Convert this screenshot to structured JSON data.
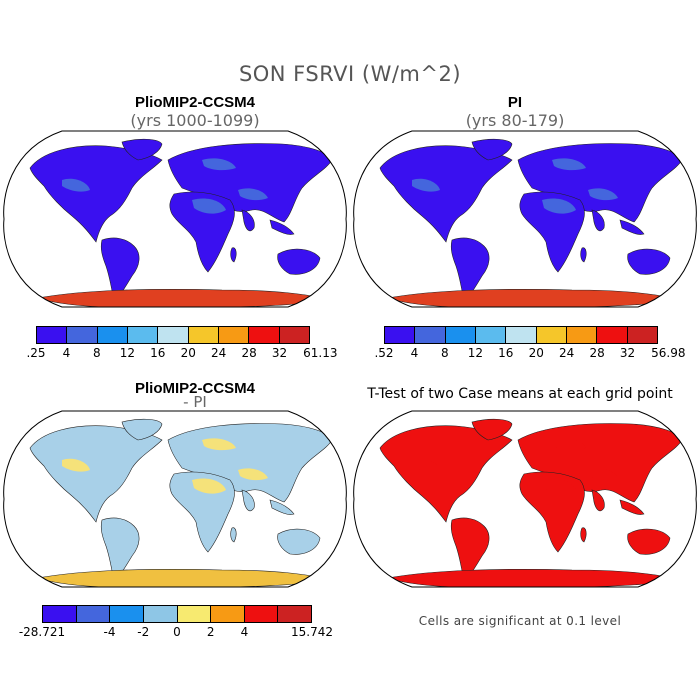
{
  "figure": {
    "title": "SON FSRVI (W/m^2)"
  },
  "panels": {
    "top_left": {
      "title": "PlioMIP2-CCSM4",
      "subtitle": "(yrs 1000-1099)"
    },
    "top_right": {
      "title": "PI",
      "subtitle": "(yrs 80-179)"
    },
    "bottom_left": {
      "title": "PlioMIP2-CCSM4",
      "subtitle": "- PI"
    },
    "bottom_right": {
      "title": "T-Test of two Case means at each grid point",
      "note": "Cells are significant at 0.1 level"
    }
  },
  "colorbars": {
    "top_left": {
      "labels": [
        ".25",
        "4",
        "8",
        "12",
        "16",
        "20",
        "24",
        "28",
        "32",
        "61.13"
      ],
      "colors": [
        "#3a10f0",
        "#4466dd",
        "#1a90ee",
        "#5bbbee",
        "#bfe3f0",
        "#f5c62a",
        "#f79a14",
        "#ee1010",
        "#cc2222"
      ]
    },
    "top_right": {
      "labels": [
        ".52",
        "4",
        "8",
        "12",
        "16",
        "20",
        "24",
        "28",
        "32",
        "56.98"
      ],
      "colors": [
        "#3a10f0",
        "#4466dd",
        "#1a90ee",
        "#5bbbee",
        "#bfe3f0",
        "#f5c62a",
        "#f79a14",
        "#ee1010",
        "#cc2222"
      ]
    },
    "bottom_left": {
      "labels": [
        "-28.721",
        "-4",
        "-2",
        "0",
        "2",
        "4",
        "15.742"
      ],
      "colors": [
        "#3a10f0",
        "#4466dd",
        "#1a90ee",
        "#8ec6e6",
        "#f7ea70",
        "#f79a14",
        "#ee1010",
        "#cc2222"
      ]
    }
  },
  "map_colors": {
    "top_left": {
      "land": "#3a10f0",
      "secondary": "#4466dd",
      "antarctica": "#e04020"
    },
    "top_right": {
      "land": "#3a10f0",
      "secondary": "#4466dd",
      "antarctica": "#e04020"
    },
    "bottom_left": {
      "land": "#a8d0e8",
      "secondary": "#f5e27a",
      "antarctica": "#f0c040"
    },
    "bottom_right": {
      "land": "#ee1010",
      "secondary": "#ee1010",
      "antarctica": "#ee1010"
    }
  }
}
